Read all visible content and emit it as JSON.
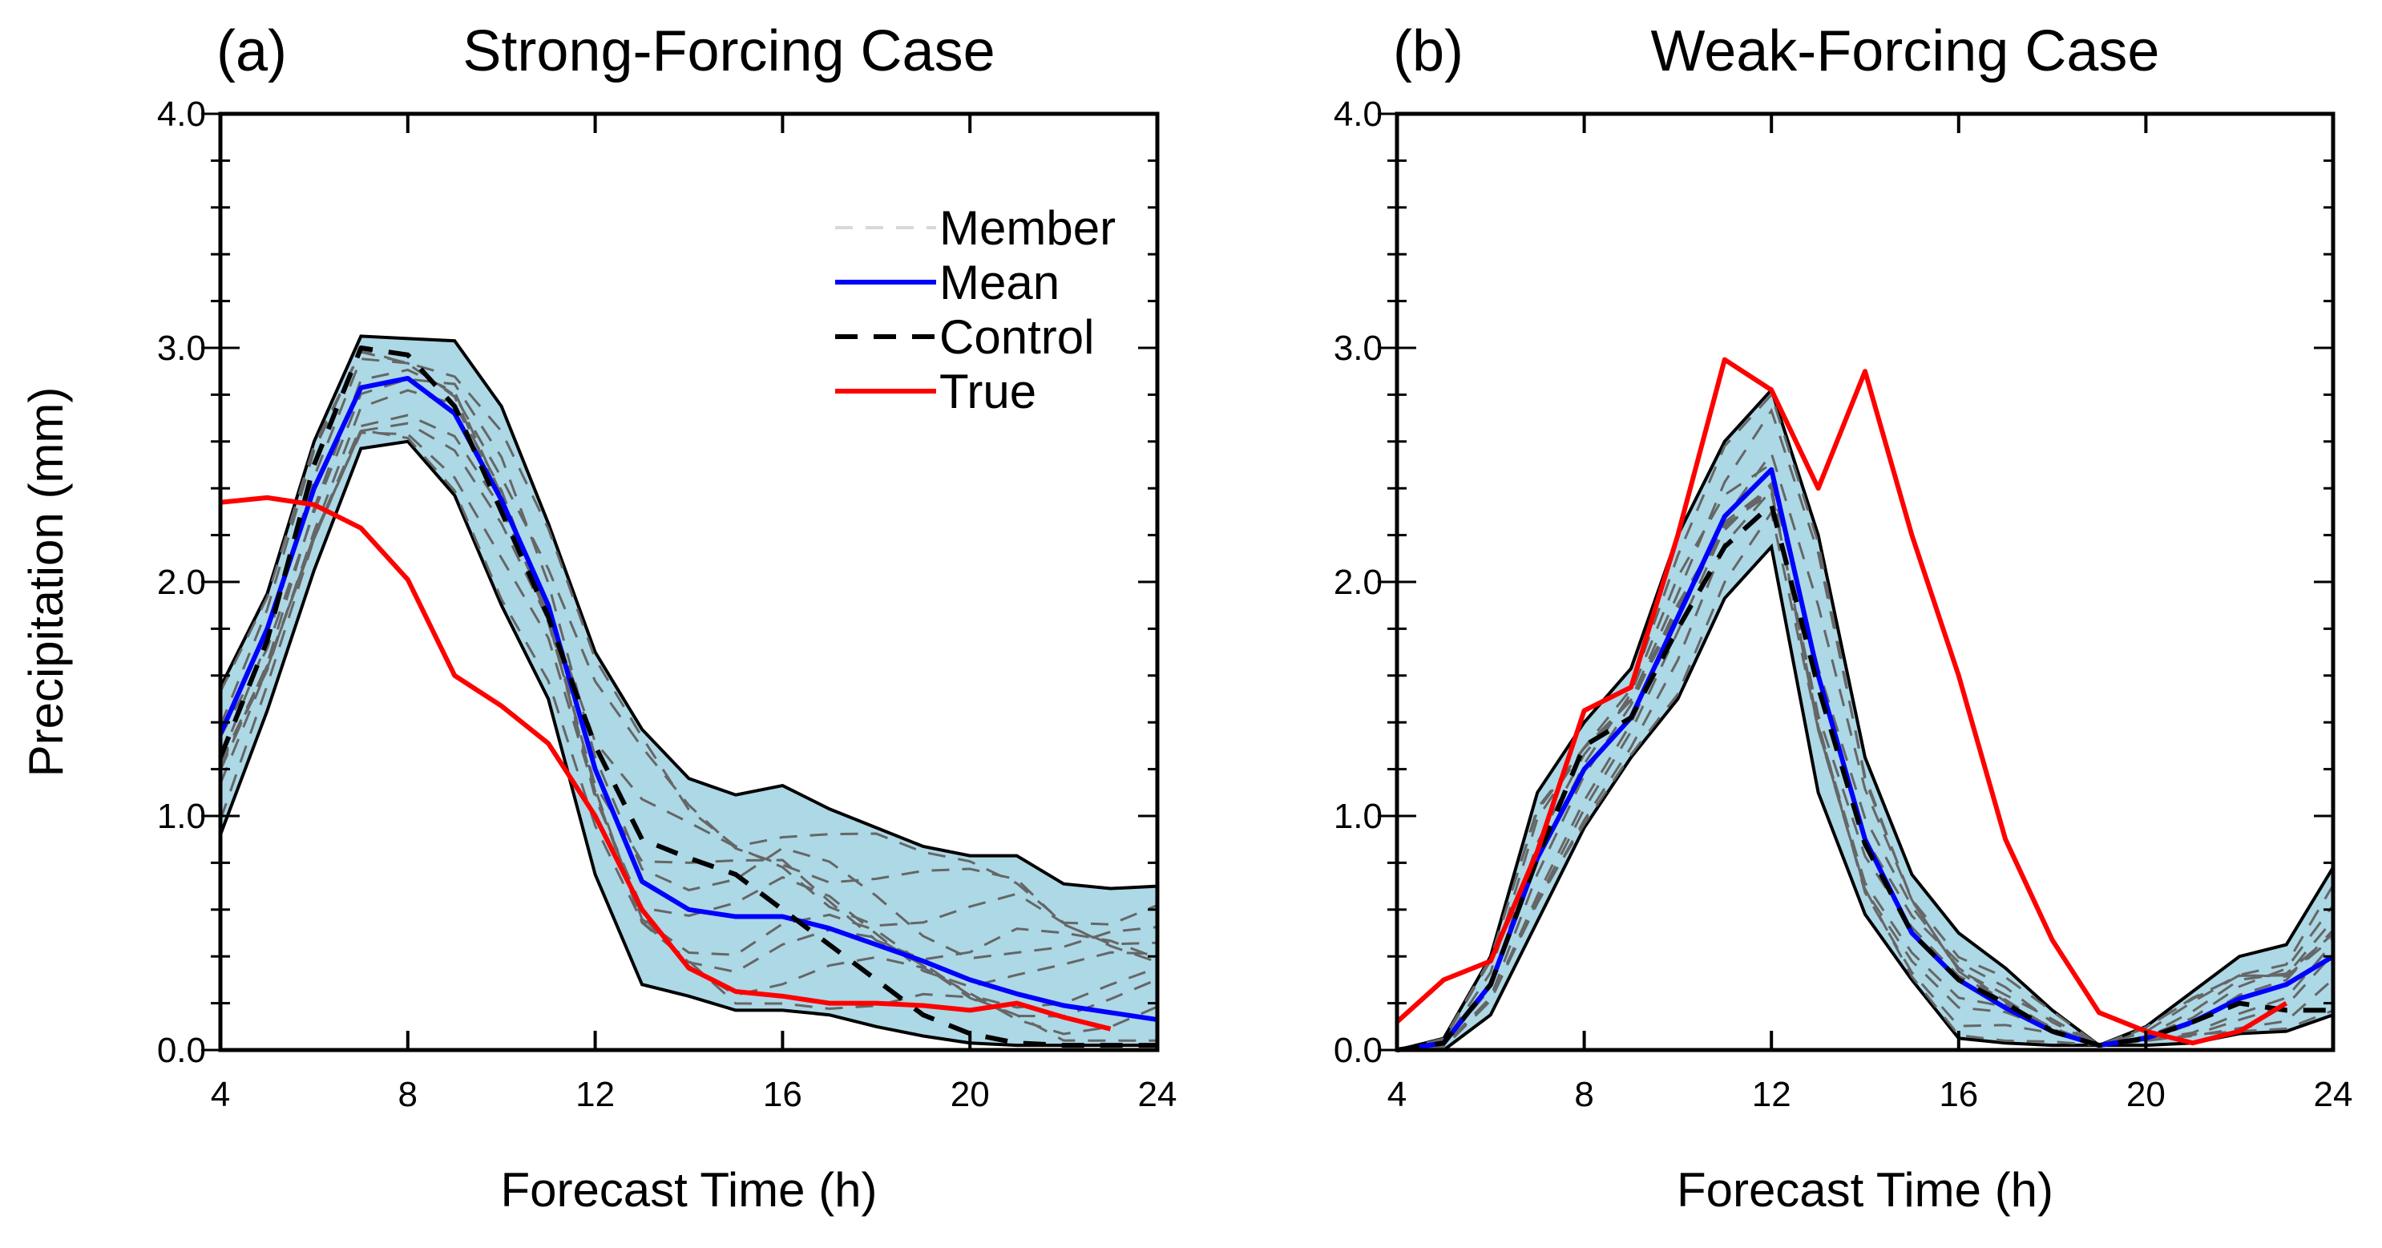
{
  "chart_data": [
    {
      "type": "line",
      "panel_label": "(a)",
      "title": "Strong-Forcing Case",
      "xlabel": "Forecast Time (h)",
      "ylabel": "Precipitation (mm)",
      "xlim": [
        4,
        24
      ],
      "ylim": [
        0,
        4
      ],
      "xticks": [
        "4",
        "8",
        "12",
        "16",
        "20",
        "24"
      ],
      "yticks": [
        "0.0",
        "1.0",
        "2.0",
        "3.0",
        "4.0"
      ],
      "x": [
        4,
        5,
        6,
        7,
        8,
        9,
        10,
        11,
        12,
        13,
        14,
        15,
        16,
        17,
        18,
        19,
        20,
        21,
        22,
        23,
        24
      ],
      "legend": {
        "position": "top-right",
        "entries": [
          "Member",
          "Mean",
          "Control",
          "True"
        ]
      },
      "envelope_upper": [
        1.55,
        1.95,
        2.6,
        3.05,
        3.04,
        3.03,
        2.75,
        2.25,
        1.7,
        1.37,
        1.16,
        1.09,
        1.13,
        1.03,
        0.95,
        0.87,
        0.83,
        0.83,
        0.71,
        0.69,
        0.7
      ],
      "envelope_lower": [
        0.92,
        1.45,
        2.05,
        2.57,
        2.6,
        2.37,
        1.9,
        1.5,
        0.75,
        0.28,
        0.23,
        0.17,
        0.17,
        0.15,
        0.1,
        0.06,
        0.03,
        0.02,
        0.02,
        0.02,
        0.02
      ],
      "series": [
        {
          "name": "Mean",
          "color": "#0000ff",
          "values": [
            1.35,
            1.8,
            2.4,
            2.83,
            2.87,
            2.72,
            2.35,
            1.9,
            1.2,
            0.72,
            0.6,
            0.57,
            0.57,
            0.52,
            0.45,
            0.38,
            0.3,
            0.24,
            0.19,
            0.16,
            0.13
          ]
        },
        {
          "name": "Control",
          "color": "#000000",
          "values": [
            1.25,
            1.75,
            2.5,
            3.0,
            2.97,
            2.75,
            2.3,
            1.85,
            1.3,
            0.9,
            0.82,
            0.75,
            0.6,
            0.45,
            0.3,
            0.15,
            0.07,
            0.03,
            0.02,
            0.02,
            0.02
          ]
        },
        {
          "name": "True",
          "color": "#ff0000",
          "values": [
            2.34,
            2.36,
            2.33,
            2.23,
            2.01,
            1.6,
            1.47,
            1.31,
            1.0,
            0.6,
            0.35,
            0.25,
            0.23,
            0.2,
            0.2,
            0.19,
            0.17,
            0.2,
            0.14,
            0.09,
            null
          ]
        }
      ]
    },
    {
      "type": "line",
      "panel_label": "(b)",
      "title": "Weak-Forcing Case",
      "xlabel": "Forecast Time (h)",
      "ylabel": "",
      "xlim": [
        4,
        24
      ],
      "ylim": [
        0,
        4
      ],
      "xticks": [
        "4",
        "8",
        "12",
        "16",
        "20",
        "24"
      ],
      "yticks": [
        "0.0",
        "1.0",
        "2.0",
        "3.0",
        "4.0"
      ],
      "x": [
        4,
        5,
        6,
        7,
        8,
        9,
        10,
        11,
        12,
        13,
        14,
        15,
        16,
        17,
        18,
        19,
        20,
        21,
        22,
        23,
        24
      ],
      "envelope_upper": [
        0,
        0.05,
        0.4,
        1.1,
        1.4,
        1.63,
        2.2,
        2.6,
        2.82,
        2.2,
        1.25,
        0.75,
        0.5,
        0.35,
        0.17,
        0.02,
        0.1,
        0.25,
        0.4,
        0.45,
        0.78
      ],
      "envelope_lower": [
        0,
        0,
        0.15,
        0.55,
        0.95,
        1.25,
        1.5,
        1.93,
        2.15,
        1.1,
        0.58,
        0.3,
        0.05,
        0.03,
        0.02,
        0.02,
        0.02,
        0.03,
        0.07,
        0.08,
        0.15
      ],
      "series": [
        {
          "name": "Mean",
          "color": "#0000ff",
          "values": [
            0,
            0.03,
            0.28,
            0.82,
            1.2,
            1.42,
            1.85,
            2.28,
            2.48,
            1.6,
            0.9,
            0.5,
            0.3,
            0.18,
            0.08,
            0.02,
            0.05,
            0.12,
            0.22,
            0.28,
            0.4
          ]
        },
        {
          "name": "Control",
          "color": "#000000",
          "values": [
            0,
            0.03,
            0.28,
            0.82,
            1.3,
            1.42,
            1.8,
            2.15,
            2.33,
            1.55,
            0.88,
            0.5,
            0.3,
            0.2,
            0.08,
            0.02,
            0.05,
            0.12,
            0.2,
            0.17,
            0.17
          ]
        },
        {
          "name": "True",
          "color": "#ff0000",
          "values": [
            0.12,
            0.3,
            0.38,
            0.85,
            1.45,
            1.55,
            2.2,
            2.95,
            2.82,
            2.4,
            2.9,
            2.2,
            1.6,
            0.9,
            0.47,
            0.16,
            0.08,
            0.03,
            0.08,
            0.2,
            null
          ]
        }
      ]
    }
  ],
  "colors": {
    "envelope_fill": "#add8e6",
    "member": "#666666",
    "member_legend": "#d8d8d8"
  }
}
